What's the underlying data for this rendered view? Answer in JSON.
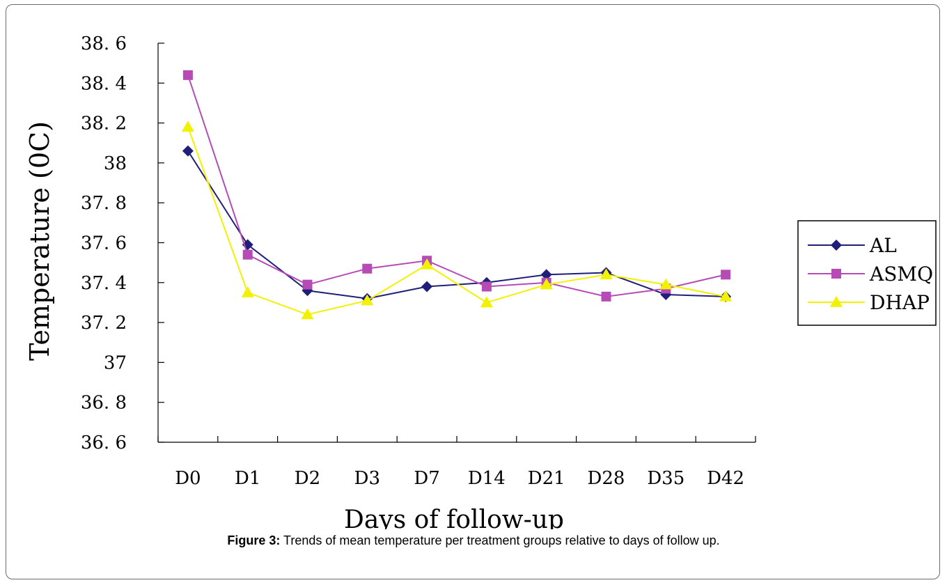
{
  "caption": {
    "label": "Figure 3:",
    "text": " Trends of mean temperature per treatment groups relative to days of follow up."
  },
  "chart_data": {
    "type": "line",
    "title": "",
    "xlabel": "Days of follow-up",
    "ylabel": "Temperature (0C)",
    "categories": [
      "D0",
      "D1",
      "D2",
      "D3",
      "D7",
      "D14",
      "D21",
      "D28",
      "D35",
      "D42"
    ],
    "ylim": [
      36.6,
      38.6
    ],
    "yticks": [
      "38. 6",
      "38. 4",
      "38. 2",
      "38",
      "37. 8",
      "37. 6",
      "37. 4",
      "37. 2",
      "37",
      "36. 8",
      "36. 6"
    ],
    "grid": false,
    "legend_position": "right",
    "series": [
      {
        "name": "AL",
        "color": "#1f1f7a",
        "marker": "diamond",
        "values": [
          38.06,
          37.59,
          37.36,
          37.32,
          37.38,
          37.4,
          37.44,
          37.45,
          37.34,
          37.33
        ]
      },
      {
        "name": "ASMQ",
        "color": "#b64bb6",
        "marker": "square",
        "values": [
          38.44,
          37.54,
          37.39,
          37.47,
          37.51,
          37.38,
          37.4,
          37.33,
          37.37,
          37.44
        ]
      },
      {
        "name": "DHAP",
        "color": "#f2f200",
        "marker": "triangle",
        "values": [
          38.18,
          37.35,
          37.24,
          37.31,
          37.49,
          37.3,
          37.39,
          37.44,
          37.39,
          37.33
        ]
      }
    ]
  }
}
